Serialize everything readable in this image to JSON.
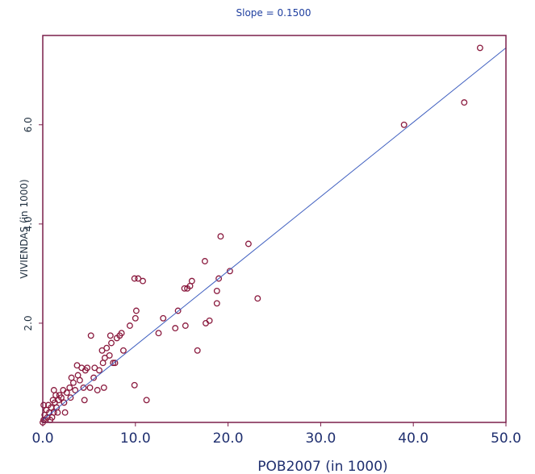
{
  "chart_data": {
    "type": "scatter",
    "title": "Slope =  0.1500",
    "xlabel": "POB2007 (in 1000)",
    "ylabel": "VIVIENDAS (in 1000)",
    "xlim": [
      0,
      50
    ],
    "ylim": [
      0,
      7.8
    ],
    "x_ticks": [
      "0.0",
      "10.0",
      "20.0",
      "30.0",
      "40.0",
      "50.0"
    ],
    "x_tick_values": [
      0,
      10,
      20,
      30,
      40,
      50
    ],
    "y_ticks": [
      "2.0",
      "4.0",
      "6.0"
    ],
    "y_tick_values": [
      2,
      4,
      6
    ],
    "grid": false,
    "fit_line": {
      "slope": 0.15,
      "intercept": 0.05
    },
    "points": [
      [
        47.2,
        7.55
      ],
      [
        45.5,
        6.45
      ],
      [
        39.0,
        6.0
      ],
      [
        23.2,
        2.5
      ],
      [
        22.2,
        3.6
      ],
      [
        20.2,
        3.05
      ],
      [
        19.2,
        3.75
      ],
      [
        19.0,
        2.9
      ],
      [
        18.8,
        2.65
      ],
      [
        18.8,
        2.4
      ],
      [
        18.0,
        2.05
      ],
      [
        17.6,
        2.0
      ],
      [
        17.5,
        3.25
      ],
      [
        16.7,
        1.45
      ],
      [
        16.1,
        2.85
      ],
      [
        15.9,
        2.75
      ],
      [
        15.6,
        2.7
      ],
      [
        15.4,
        1.95
      ],
      [
        15.3,
        2.7
      ],
      [
        14.6,
        2.25
      ],
      [
        14.3,
        1.9
      ],
      [
        13.0,
        2.1
      ],
      [
        12.5,
        1.8
      ],
      [
        11.2,
        0.45
      ],
      [
        10.8,
        2.85
      ],
      [
        10.3,
        2.9
      ],
      [
        10.1,
        2.25
      ],
      [
        10.0,
        2.1
      ],
      [
        9.9,
        2.9
      ],
      [
        9.9,
        0.75
      ],
      [
        9.4,
        1.95
      ],
      [
        8.7,
        1.45
      ],
      [
        8.5,
        1.8
      ],
      [
        8.3,
        1.75
      ],
      [
        8.0,
        1.7
      ],
      [
        7.8,
        1.2
      ],
      [
        7.6,
        1.2
      ],
      [
        7.4,
        1.6
      ],
      [
        7.3,
        1.75
      ],
      [
        7.2,
        1.35
      ],
      [
        6.9,
        1.5
      ],
      [
        6.7,
        1.3
      ],
      [
        6.6,
        0.7
      ],
      [
        6.5,
        1.2
      ],
      [
        6.4,
        1.45
      ],
      [
        6.1,
        1.05
      ],
      [
        5.9,
        0.65
      ],
      [
        5.6,
        1.1
      ],
      [
        5.5,
        0.9
      ],
      [
        5.2,
        1.75
      ],
      [
        5.1,
        0.7
      ],
      [
        4.8,
        1.1
      ],
      [
        4.6,
        1.05
      ],
      [
        4.5,
        0.45
      ],
      [
        4.4,
        0.7
      ],
      [
        4.2,
        1.1
      ],
      [
        4.0,
        0.85
      ],
      [
        3.8,
        0.95
      ],
      [
        3.7,
        1.15
      ],
      [
        3.5,
        0.65
      ],
      [
        3.3,
        0.8
      ],
      [
        3.1,
        0.9
      ],
      [
        3.0,
        0.5
      ],
      [
        2.9,
        0.7
      ],
      [
        2.6,
        0.6
      ],
      [
        2.4,
        0.2
      ],
      [
        2.3,
        0.4
      ],
      [
        2.2,
        0.65
      ],
      [
        2.0,
        0.5
      ],
      [
        1.8,
        0.55
      ],
      [
        1.7,
        0.45
      ],
      [
        1.6,
        0.2
      ],
      [
        1.5,
        0.3
      ],
      [
        1.4,
        0.55
      ],
      [
        1.3,
        0.4
      ],
      [
        1.2,
        0.65
      ],
      [
        1.2,
        0.2
      ],
      [
        1.1,
        0.45
      ],
      [
        1.0,
        0.1
      ],
      [
        0.9,
        0.3
      ],
      [
        0.8,
        0.05
      ],
      [
        0.7,
        0.2
      ],
      [
        0.6,
        0.35
      ],
      [
        0.5,
        0.1
      ],
      [
        0.4,
        0.25
      ],
      [
        0.3,
        0.05
      ],
      [
        0.2,
        0.15
      ],
      [
        0.1,
        0.05
      ],
      [
        0.1,
        0.35
      ],
      [
        0.0,
        0.0
      ]
    ],
    "colors": {
      "frame": "#7a1e4a",
      "line": "#4060c0",
      "marker": "#8a1a3e",
      "title": "#1f3f9f"
    }
  }
}
